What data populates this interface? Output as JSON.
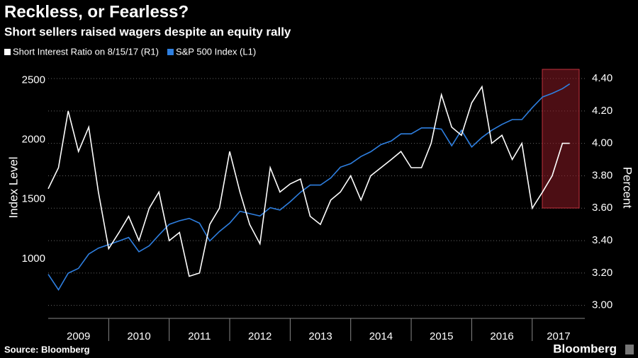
{
  "chart_data": {
    "type": "line",
    "title": "Reckless, or Fearless?",
    "subtitle": "Short sellers raised wagers despite an equity rally",
    "ylabel": "Index Level",
    "y2label": "Percent",
    "source": "Source: Bloomberg",
    "brand": "Bloomberg",
    "x_labels": [
      "2009",
      "2010",
      "2011",
      "2012",
      "2013",
      "2014",
      "2015",
      "2016",
      "2017"
    ],
    "xlim": [
      2009,
      2017.87
    ],
    "xticks": [
      2010,
      2011,
      2012,
      2013,
      2014,
      2015,
      2016,
      2017
    ],
    "ylim": [
      500,
      2610
    ],
    "yticks": [
      1000,
      1500,
      2000,
      2500
    ],
    "y2lim": [
      2.92,
      4.47
    ],
    "y2ticks": [
      {
        "value": 3.0,
        "label": "3.00"
      },
      {
        "value": 3.2,
        "label": "3.20"
      },
      {
        "value": 3.4,
        "label": "3.40"
      },
      {
        "value": 3.6,
        "label": "3.60"
      },
      {
        "value": 3.8,
        "label": "3.80"
      },
      {
        "value": 4.0,
        "label": "4.00"
      },
      {
        "value": 4.2,
        "label": "4.20"
      },
      {
        "value": 4.4,
        "label": "4.40"
      }
    ],
    "grid": true,
    "x": [
      2009,
      2009.17,
      2009.33,
      2009.5,
      2009.67,
      2009.83,
      2010,
      2010.17,
      2010.33,
      2010.5,
      2010.67,
      2010.83,
      2011,
      2011.17,
      2011.33,
      2011.5,
      2011.67,
      2011.83,
      2012,
      2012.17,
      2012.33,
      2012.5,
      2012.67,
      2012.83,
      2013,
      2013.17,
      2013.33,
      2013.5,
      2013.67,
      2013.83,
      2014,
      2014.17,
      2014.33,
      2014.5,
      2014.67,
      2014.83,
      2015,
      2015.17,
      2015.33,
      2015.5,
      2015.67,
      2015.83,
      2016,
      2016.17,
      2016.33,
      2016.5,
      2016.67,
      2016.83,
      2017,
      2017.17,
      2017.33,
      2017.5,
      2017.62
    ],
    "series": [
      {
        "name": "Short Interest Ratio  on 8/15/17 (R1)",
        "color": "#ffffff",
        "axis": "y2",
        "values": [
          3.72,
          3.85,
          4.2,
          3.95,
          4.1,
          3.7,
          3.35,
          3.45,
          3.55,
          3.4,
          3.6,
          3.7,
          3.4,
          3.45,
          3.18,
          3.2,
          3.5,
          3.6,
          3.95,
          3.7,
          3.5,
          3.38,
          3.85,
          3.7,
          3.75,
          3.78,
          3.55,
          3.5,
          3.65,
          3.7,
          3.8,
          3.65,
          3.8,
          3.85,
          3.9,
          3.95,
          3.85,
          3.85,
          4.0,
          4.3,
          4.1,
          4.05,
          4.25,
          4.35,
          4.0,
          4.05,
          3.9,
          4.0,
          3.6,
          3.7,
          3.8,
          4.0,
          4.0
        ]
      },
      {
        "name": "S&P 500 Index (L1)",
        "color": "#2e7fe0",
        "values": [
          870,
          740,
          880,
          920,
          1040,
          1090,
          1120,
          1150,
          1180,
          1060,
          1110,
          1200,
          1290,
          1320,
          1340,
          1300,
          1150,
          1230,
          1300,
          1400,
          1380,
          1360,
          1430,
          1410,
          1480,
          1560,
          1620,
          1620,
          1680,
          1770,
          1800,
          1860,
          1900,
          1960,
          1990,
          2050,
          2050,
          2100,
          2100,
          2090,
          1950,
          2080,
          1940,
          2020,
          2080,
          2130,
          2170,
          2170,
          2270,
          2360,
          2390,
          2430,
          2470
        ]
      }
    ]
  }
}
